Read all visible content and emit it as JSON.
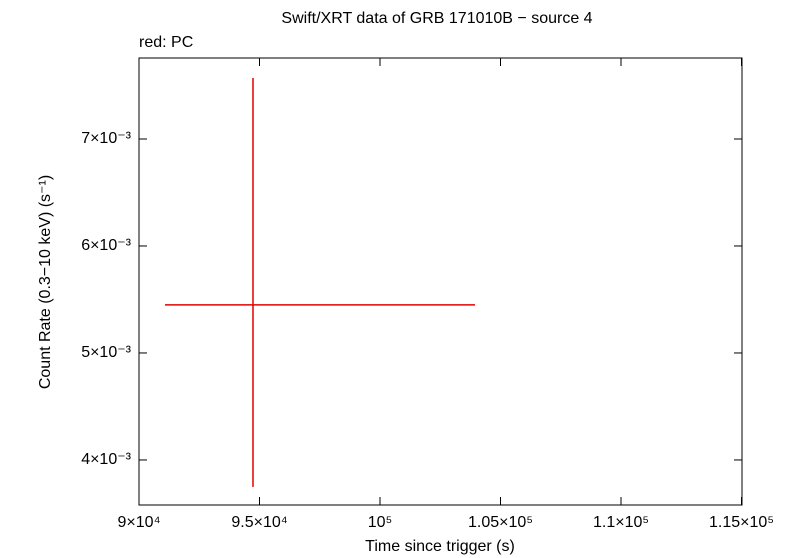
{
  "chart_data": {
    "type": "errorbar",
    "title": "Swift/XRT data of GRB 171010B − source 4",
    "subtitle": "red: PC",
    "x_label": "Time since trigger (s)",
    "y_label": "Count Rate (0.3−10 keV) (s⁻¹)",
    "xlim": [
      90000,
      115021
    ],
    "ylim": [
      0.003579,
      0.007757
    ],
    "xticks": [
      {
        "value": 90000,
        "label": "9×10⁴"
      },
      {
        "value": 95000,
        "label": "9.5×10⁴"
      },
      {
        "value": 100000,
        "label": "10⁵"
      },
      {
        "value": 105000,
        "label": "1.05×10⁵"
      },
      {
        "value": 110000,
        "label": "1.1×10⁵"
      },
      {
        "value": 115000,
        "label": "1.15×10⁵"
      }
    ],
    "yticks": [
      {
        "value": 0.004,
        "label": "4×10⁻³"
      },
      {
        "value": 0.005,
        "label": "5×10⁻³"
      },
      {
        "value": 0.006,
        "label": "6×10⁻³"
      },
      {
        "value": 0.007,
        "label": "7×10⁻³"
      }
    ],
    "series": [
      {
        "color": "#e00000",
        "x": [
          94730
        ],
        "x_err_low": [
          3651
        ],
        "x_err_high": [
          9212
        ],
        "values": [
          0.005449
        ],
        "y_err_low": [
          0.001701
        ],
        "y_err_high": [
          0.002121
        ]
      }
    ]
  }
}
